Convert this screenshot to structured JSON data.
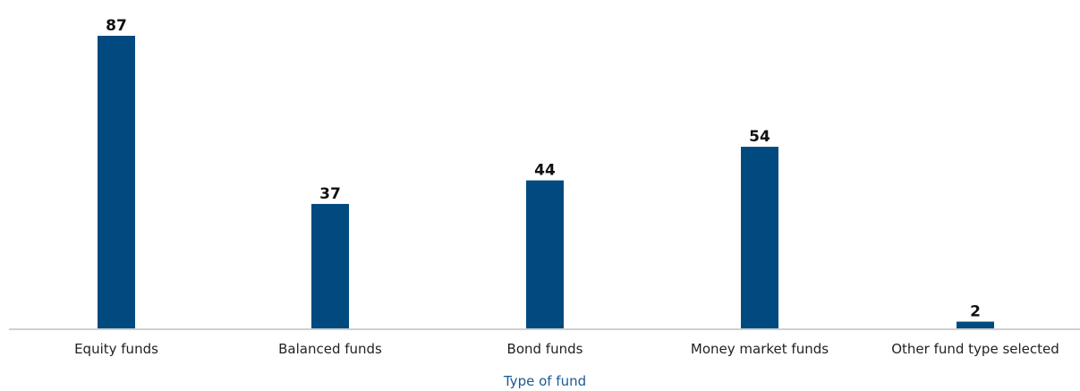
{
  "chart_data": {
    "type": "bar",
    "categories": [
      "Equity funds",
      "Balanced funds",
      "Bond funds",
      "Money market funds",
      "Other fund type selected"
    ],
    "values": [
      87,
      37,
      44,
      54,
      2
    ],
    "title": "",
    "xlabel": "Type of fund",
    "ylabel": "",
    "ylim": [
      0,
      87
    ],
    "grid": false,
    "data_labels": true,
    "colors": {
      "bar": "#004A80",
      "axis": "#d0d0d0",
      "xlabel": "#1a5a96"
    }
  }
}
